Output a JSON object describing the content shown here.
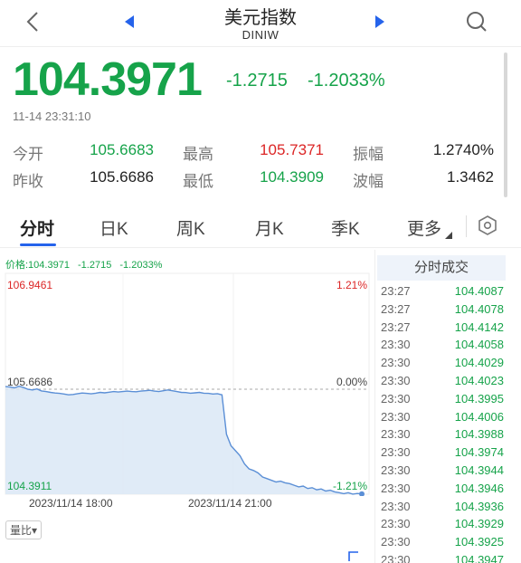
{
  "header": {
    "title": "美元指数",
    "subtitle": "DINIW"
  },
  "quote": {
    "price": "104.3971",
    "change": "-1.2715",
    "change_pct": "-1.2033%",
    "timestamp": "11-14 23:31:10"
  },
  "stats": [
    [
      {
        "label": "今开",
        "value": "105.6683",
        "color": "#16a34a"
      },
      {
        "label": "最高",
        "value": "105.7371",
        "color": "#dc2626"
      },
      {
        "label": "振幅",
        "value": "1.2740%",
        "color": "#222"
      }
    ],
    [
      {
        "label": "昨收",
        "value": "105.6686",
        "color": "#222"
      },
      {
        "label": "最低",
        "value": "104.3909",
        "color": "#16a34a"
      },
      {
        "label": "波幅",
        "value": "1.3462",
        "color": "#222"
      }
    ]
  ],
  "tabs": [
    {
      "label": "分时",
      "active": true
    },
    {
      "label": "日K"
    },
    {
      "label": "周K"
    },
    {
      "label": "月K"
    },
    {
      "label": "季K"
    },
    {
      "label": "更多"
    }
  ],
  "chart_info": {
    "price_label": "价格:104.3971",
    "change": "-1.2715",
    "change_pct": "-1.2033%"
  },
  "volume_button": "量比▾",
  "colors": {
    "up": "#dc2626",
    "down": "#16a34a",
    "accent": "#2563eb",
    "line": "#5b8fd6"
  },
  "trades_header": "分时成交",
  "trades": [
    {
      "t": "23:27",
      "p": "104.4087"
    },
    {
      "t": "23:27",
      "p": "104.4078"
    },
    {
      "t": "23:27",
      "p": "104.4142"
    },
    {
      "t": "23:30",
      "p": "104.4058"
    },
    {
      "t": "23:30",
      "p": "104.4029"
    },
    {
      "t": "23:30",
      "p": "104.4023"
    },
    {
      "t": "23:30",
      "p": "104.3995"
    },
    {
      "t": "23:30",
      "p": "104.4006"
    },
    {
      "t": "23:30",
      "p": "104.3988"
    },
    {
      "t": "23:30",
      "p": "104.3974"
    },
    {
      "t": "23:30",
      "p": "104.3944"
    },
    {
      "t": "23:30",
      "p": "104.3946"
    },
    {
      "t": "23:30",
      "p": "104.3936"
    },
    {
      "t": "23:30",
      "p": "104.3929"
    },
    {
      "t": "23:30",
      "p": "104.3925"
    },
    {
      "t": "23:30",
      "p": "104.3947"
    }
  ],
  "chart_data": {
    "type": "line",
    "y_max_label": "106.9461",
    "y_max_pct": "1.21%",
    "y_mid_label": "105.6686",
    "y_mid_pct": "0.00%",
    "y_min_label": "104.3911",
    "y_min_pct": "-1.21%",
    "ylim": [
      104.3911,
      106.9461
    ],
    "x_ticks": [
      "2023/11/14 18:00",
      "2023/11/14 21:00"
    ],
    "series": [
      {
        "values": [
          105.7,
          105.695,
          105.685,
          105.705,
          105.69,
          105.668,
          105.66,
          105.672,
          105.648,
          105.64,
          105.63,
          105.622,
          105.618,
          105.61,
          105.6,
          105.605,
          105.615,
          105.622,
          105.618,
          105.612,
          105.62,
          105.63,
          105.625,
          105.632,
          105.64,
          105.635,
          105.64,
          105.646,
          105.64,
          105.638,
          105.646,
          105.65,
          105.655,
          105.645,
          105.64,
          105.65,
          105.66,
          105.65,
          105.64,
          105.63,
          105.628,
          105.62,
          105.625,
          105.63,
          105.62,
          105.618,
          105.61,
          105.615,
          105.6,
          105.12,
          104.98,
          104.92,
          104.86,
          104.76,
          104.7,
          104.68,
          104.65,
          104.6,
          104.58,
          104.56,
          104.54,
          104.55,
          104.53,
          104.52,
          104.5,
          104.48,
          104.49,
          104.46,
          104.47,
          104.445,
          104.455,
          104.43,
          104.44,
          104.42,
          104.41,
          104.398,
          104.41,
          104.392,
          104.4,
          104.394
        ]
      }
    ]
  }
}
